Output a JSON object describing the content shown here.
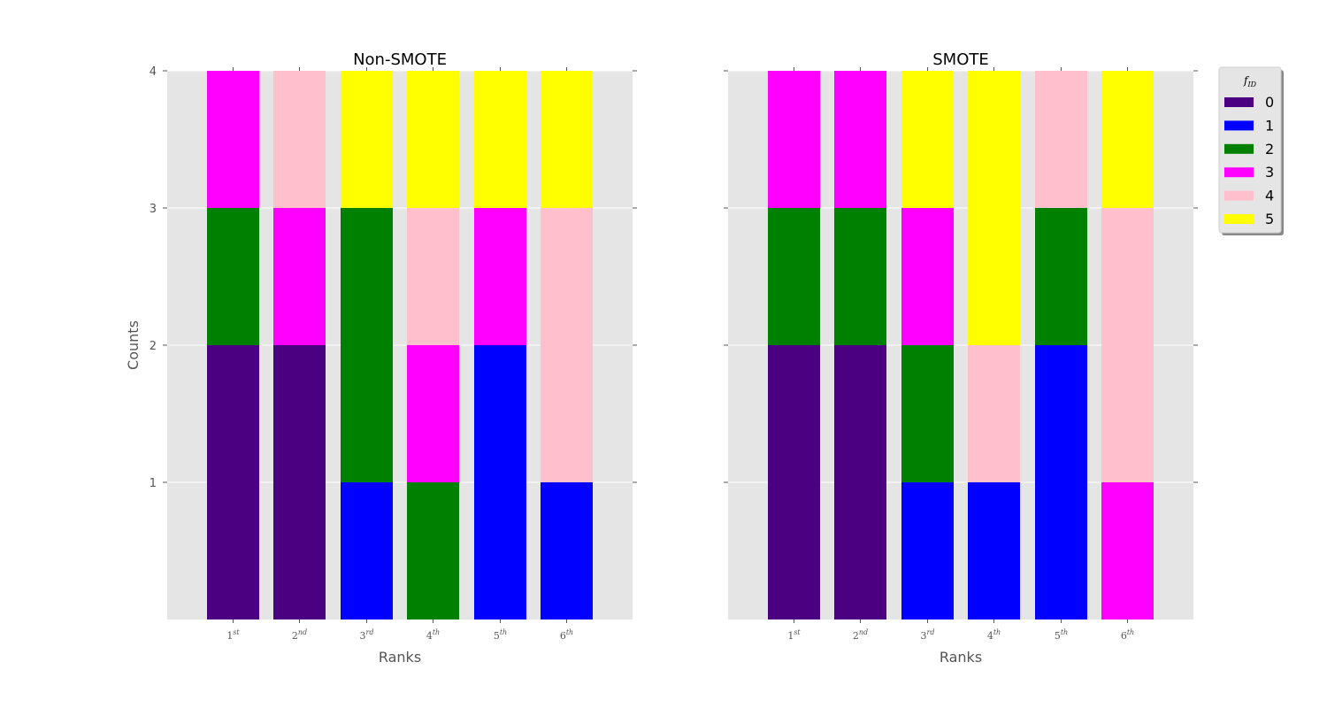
{
  "chart_data": [
    {
      "type": "bar",
      "stacked": true,
      "title": "Non-SMOTE",
      "xlabel": "Ranks",
      "ylabel": "Counts",
      "ylim": [
        0,
        4
      ],
      "yticks": [
        "1",
        "2",
        "3",
        "4"
      ],
      "categories": [
        {
          "base": "1",
          "sup": "st"
        },
        {
          "base": "2",
          "sup": "nd"
        },
        {
          "base": "3",
          "sup": "rd"
        },
        {
          "base": "4",
          "sup": "th"
        },
        {
          "base": "5",
          "sup": "th"
        },
        {
          "base": "6",
          "sup": "th"
        }
      ],
      "series": [
        {
          "name": "0",
          "values": [
            2,
            2,
            0,
            0,
            0,
            0
          ]
        },
        {
          "name": "1",
          "values": [
            0,
            0,
            1,
            0,
            2,
            1
          ]
        },
        {
          "name": "2",
          "values": [
            1,
            0,
            2,
            1,
            0,
            0
          ]
        },
        {
          "name": "3",
          "values": [
            1,
            1,
            0,
            1,
            1,
            0
          ]
        },
        {
          "name": "4",
          "values": [
            0,
            1,
            0,
            1,
            0,
            2
          ]
        },
        {
          "name": "5",
          "values": [
            0,
            0,
            1,
            1,
            1,
            1
          ]
        }
      ],
      "grid": true
    },
    {
      "type": "bar",
      "stacked": true,
      "title": "SMOTE",
      "xlabel": "Ranks",
      "ylabel": "",
      "ylim": [
        0,
        4
      ],
      "categories": [
        {
          "base": "1",
          "sup": "st"
        },
        {
          "base": "2",
          "sup": "nd"
        },
        {
          "base": "3",
          "sup": "rd"
        },
        {
          "base": "4",
          "sup": "th"
        },
        {
          "base": "5",
          "sup": "th"
        },
        {
          "base": "6",
          "sup": "th"
        }
      ],
      "series": [
        {
          "name": "0",
          "values": [
            2,
            2,
            0,
            0,
            0,
            0
          ]
        },
        {
          "name": "1",
          "values": [
            0,
            0,
            1,
            1,
            2,
            0
          ]
        },
        {
          "name": "2",
          "values": [
            1,
            1,
            1,
            0,
            1,
            0
          ]
        },
        {
          "name": "3",
          "values": [
            1,
            1,
            1,
            0,
            0,
            1
          ]
        },
        {
          "name": "4",
          "values": [
            0,
            0,
            0,
            1,
            1,
            2
          ]
        },
        {
          "name": "5",
          "values": [
            0,
            0,
            1,
            2,
            0,
            1
          ]
        }
      ],
      "grid": true
    }
  ],
  "legend": {
    "title_base": "f",
    "title_sub": "ID",
    "placement": "outside-top-right",
    "entries": [
      "0",
      "1",
      "2",
      "3",
      "4",
      "5"
    ]
  },
  "colors": {
    "0": "#4b0082",
    "1": "#0000ff",
    "2": "#008000",
    "3": "#ff00ff",
    "4": "#ffc0cb",
    "5": "#ffff00",
    "axes_bg": "#e5e5e5",
    "grid": "#ffffff"
  }
}
